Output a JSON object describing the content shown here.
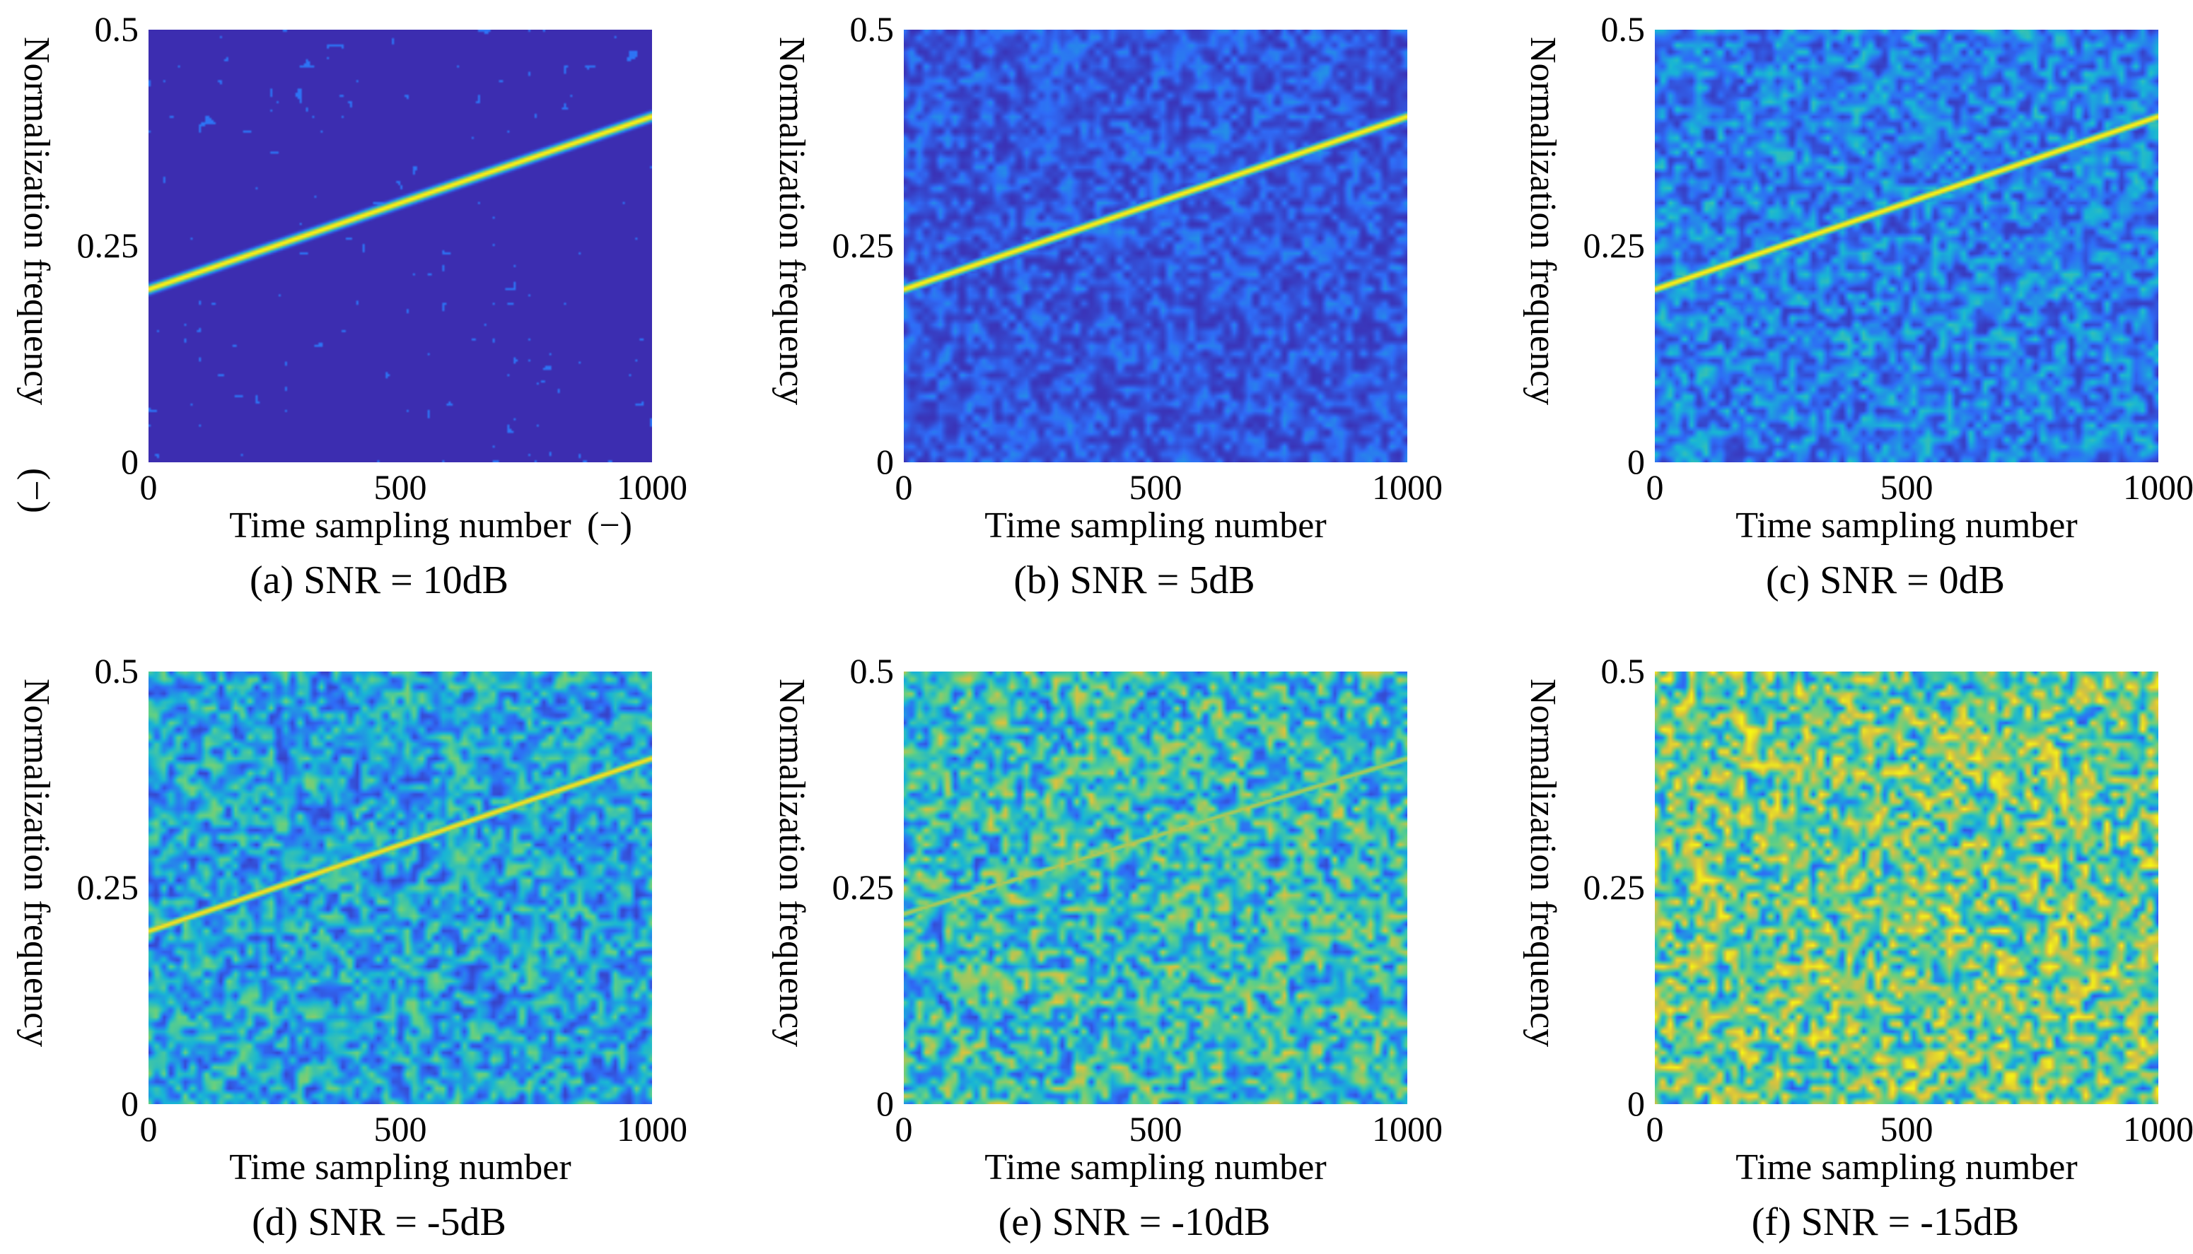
{
  "figure": {
    "panels": [
      {
        "caption": "(a) SNR = 10dB",
        "extra_left": "(−)",
        "extra_bottom": "(−)"
      },
      {
        "caption": "(b) SNR = 5dB"
      },
      {
        "caption": "(c) SNR = 0dB"
      },
      {
        "caption": "(d) SNR = -5dB"
      },
      {
        "caption": "(e) SNR = -10dB"
      },
      {
        "caption": "(f) SNR = -15dB"
      }
    ]
  },
  "chart_data": [
    {
      "type": "heatmap",
      "title": "(a) SNR = 10dB",
      "xlabel": "Time sampling number",
      "ylabel": "Normalization frequency",
      "xlim": [
        0,
        1000
      ],
      "ylim": [
        0,
        0.5
      ],
      "xticks": [
        "0",
        "500",
        "1000"
      ],
      "yticks": [
        "0",
        "0.25",
        "0.5"
      ],
      "snr_db": 10,
      "noise_level": 0.05,
      "ridge_strength": 1.0,
      "ridge": {
        "x": [
          0,
          1000
        ],
        "y": [
          0.2,
          0.4
        ]
      },
      "colormap": [
        "#3d26a8",
        "#2f6cf7",
        "#18b6d5",
        "#5fd085",
        "#d9c13f",
        "#f9fb0e"
      ]
    },
    {
      "type": "heatmap",
      "title": "(b) SNR = 5dB",
      "xlabel": "Time sampling number",
      "ylabel": "Normalization frequency",
      "xlim": [
        0,
        1000
      ],
      "ylim": [
        0,
        0.5
      ],
      "xticks": [
        "0",
        "500",
        "1000"
      ],
      "yticks": [
        "0",
        "0.25",
        "0.5"
      ],
      "snr_db": 5,
      "noise_level": 0.22,
      "ridge_strength": 1.0,
      "ridge": {
        "x": [
          0,
          1000
        ],
        "y": [
          0.2,
          0.4
        ]
      },
      "colormap": [
        "#3d26a8",
        "#2f6cf7",
        "#18b6d5",
        "#5fd085",
        "#d9c13f",
        "#f9fb0e"
      ]
    },
    {
      "type": "heatmap",
      "title": "(c) SNR = 0dB",
      "xlabel": "Time sampling number",
      "ylabel": "Normalization frequency",
      "xlim": [
        0,
        1000
      ],
      "ylim": [
        0,
        0.5
      ],
      "xticks": [
        "0",
        "500",
        "1000"
      ],
      "yticks": [
        "0",
        "0.25",
        "0.5"
      ],
      "snr_db": 0,
      "noise_level": 0.36,
      "ridge_strength": 1.0,
      "ridge": {
        "x": [
          0,
          1000
        ],
        "y": [
          0.2,
          0.4
        ]
      },
      "colormap": [
        "#3d26a8",
        "#2f6cf7",
        "#18b6d5",
        "#5fd085",
        "#d9c13f",
        "#f9fb0e"
      ]
    },
    {
      "type": "heatmap",
      "title": "(d) SNR = -5dB",
      "xlabel": "Time sampling number",
      "ylabel": "Normalization frequency",
      "xlim": [
        0,
        1000
      ],
      "ylim": [
        0,
        0.5
      ],
      "xticks": [
        "0",
        "500",
        "1000"
      ],
      "yticks": [
        "0",
        "0.25",
        "0.5"
      ],
      "snr_db": -5,
      "noise_level": 0.48,
      "ridge_strength": 0.95,
      "ridge": {
        "x": [
          0,
          1000
        ],
        "y": [
          0.2,
          0.4
        ]
      },
      "colormap": [
        "#3d26a8",
        "#2f6cf7",
        "#18b6d5",
        "#5fd085",
        "#d9c13f",
        "#f9fb0e"
      ]
    },
    {
      "type": "heatmap",
      "title": "(e) SNR = -10dB",
      "xlabel": "Time sampling number",
      "ylabel": "Normalization frequency",
      "xlim": [
        0,
        1000
      ],
      "ylim": [
        0,
        0.5
      ],
      "xticks": [
        "0",
        "500",
        "1000"
      ],
      "yticks": [
        "0",
        "0.25",
        "0.5"
      ],
      "snr_db": -10,
      "noise_level": 0.6,
      "ridge_strength": 0.75,
      "ridge": {
        "x": [
          0,
          1000
        ],
        "y": [
          0.22,
          0.4
        ]
      },
      "colormap": [
        "#3d26a8",
        "#2f6cf7",
        "#18b6d5",
        "#5fd085",
        "#d9c13f",
        "#f9fb0e"
      ]
    },
    {
      "type": "heatmap",
      "title": "(f) SNR = -15dB",
      "xlabel": "Time sampling number",
      "ylabel": "Normalization frequency",
      "xlim": [
        0,
        1000
      ],
      "ylim": [
        0,
        0.5
      ],
      "xticks": [
        "0",
        "500",
        "1000"
      ],
      "yticks": [
        "0",
        "0.25",
        "0.5"
      ],
      "snr_db": -15,
      "noise_level": 0.72,
      "ridge_strength": 0.0,
      "ridge": null,
      "colormap": [
        "#3d26a8",
        "#2f6cf7",
        "#18b6d5",
        "#5fd085",
        "#d9c13f",
        "#f9fb0e"
      ]
    }
  ]
}
